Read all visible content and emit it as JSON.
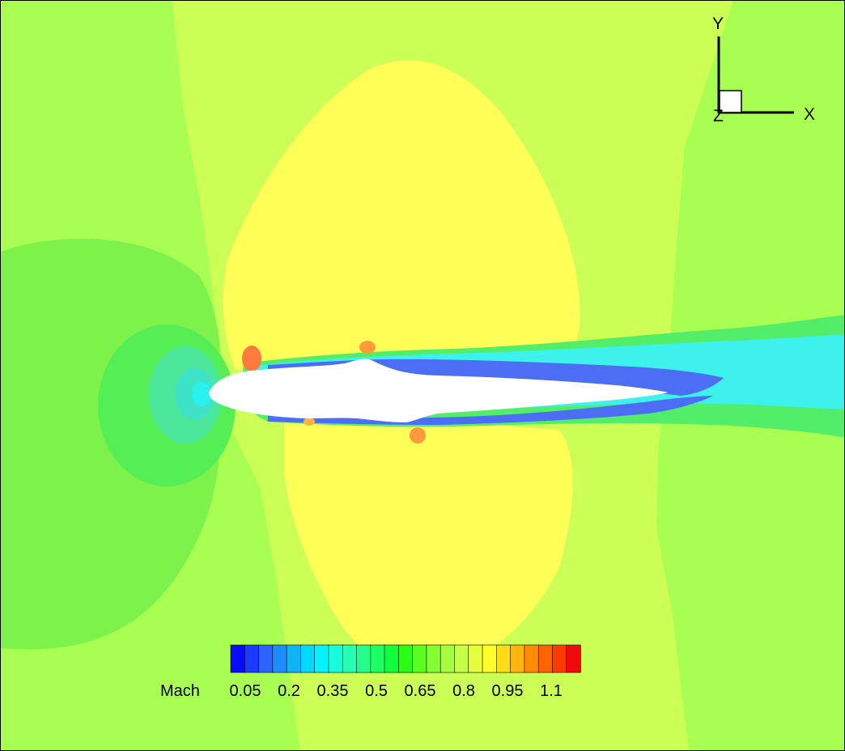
{
  "chart_data": {
    "type": "heatmap",
    "title": "",
    "variable": "Mach",
    "description_free": true,
    "colorbar": {
      "label": "Mach",
      "min": 0.0,
      "max": 1.2,
      "step": 0.05,
      "tick_values": [
        0.05,
        0.2,
        0.35,
        0.5,
        0.65,
        0.8,
        0.95,
        1.1
      ],
      "tick_labels": [
        "0.05",
        "0.2",
        "0.35",
        "0.5",
        "0.65",
        "0.8",
        "0.95",
        "1.1"
      ],
      "colors": [
        "#0a0aff",
        "#1d3bff",
        "#2b64ff",
        "#1c8cff",
        "#0fb4ff",
        "#00d8ff",
        "#00f4ff",
        "#16ffdc",
        "#25ffb4",
        "#23ff8c",
        "#1cff64",
        "#10ff3c",
        "#28ff14",
        "#5aff1e",
        "#82ff32",
        "#a5ff3c",
        "#c8ff46",
        "#e6ff3c",
        "#ffff28",
        "#ffdc14",
        "#ffb40a",
        "#ff8c00",
        "#ff6400",
        "#ff3c00",
        "#f00a0a"
      ]
    },
    "field_levels": {
      "freestream": 0.8,
      "far_field_upstream": 0.7,
      "inner_upstream": 0.6,
      "bulge_region": 0.9,
      "wake_core": 0.35,
      "wake_edge": 0.15,
      "stagnation": 0.3,
      "hot_spot": 1.1
    },
    "axes": {
      "x_label": "X",
      "y_label": "Y",
      "z_label": "Z"
    }
  }
}
